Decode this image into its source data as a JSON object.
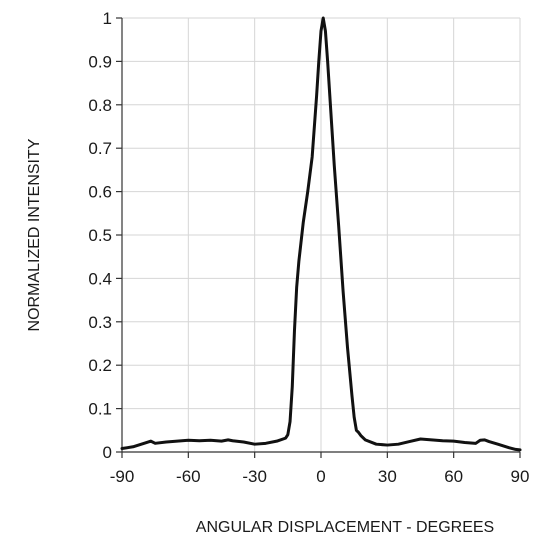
{
  "chart_data": {
    "type": "line",
    "title": "",
    "xlabel": "ANGULAR DISPLACEMENT - DEGREES",
    "ylabel": "NORMALIZED INTENSITY",
    "xlim": [
      -90,
      90
    ],
    "ylim": [
      0,
      1
    ],
    "x_ticks": [
      "-90",
      "-60",
      "-30",
      "0",
      "30",
      "60",
      "90"
    ],
    "y_ticks": [
      "0",
      "0.1",
      "0.2",
      "0.3",
      "0.4",
      "0.5",
      "0.6",
      "0.7",
      "0.8",
      "0.9",
      "1"
    ],
    "grid": true,
    "legend": "none",
    "line_color": "#111111",
    "series": [
      {
        "name": "",
        "x": [
          -90,
          -85,
          -80,
          -77,
          -75,
          -70,
          -65,
          -60,
          -55,
          -50,
          -45,
          -42,
          -40,
          -35,
          -30,
          -25,
          -20,
          -16,
          -15,
          -14,
          -13,
          -12,
          -11,
          -10,
          -8,
          -6,
          -4,
          -2,
          -1,
          0,
          1,
          2,
          3,
          4,
          6,
          8,
          10,
          12,
          14,
          15,
          16,
          17,
          18,
          20,
          25,
          30,
          35,
          40,
          45,
          50,
          55,
          60,
          65,
          70,
          72,
          74,
          76,
          80,
          85,
          88,
          90
        ],
        "y": [
          0.008,
          0.012,
          0.02,
          0.025,
          0.02,
          0.023,
          0.025,
          0.027,
          0.026,
          0.027,
          0.025,
          0.028,
          0.026,
          0.023,
          0.018,
          0.02,
          0.025,
          0.032,
          0.04,
          0.07,
          0.15,
          0.28,
          0.38,
          0.44,
          0.53,
          0.6,
          0.68,
          0.82,
          0.9,
          0.97,
          1.0,
          0.97,
          0.9,
          0.82,
          0.66,
          0.52,
          0.37,
          0.24,
          0.13,
          0.08,
          0.05,
          0.045,
          0.038,
          0.028,
          0.018,
          0.016,
          0.018,
          0.024,
          0.03,
          0.028,
          0.026,
          0.025,
          0.022,
          0.02,
          0.027,
          0.028,
          0.024,
          0.018,
          0.01,
          0.006,
          0.005
        ]
      }
    ]
  }
}
